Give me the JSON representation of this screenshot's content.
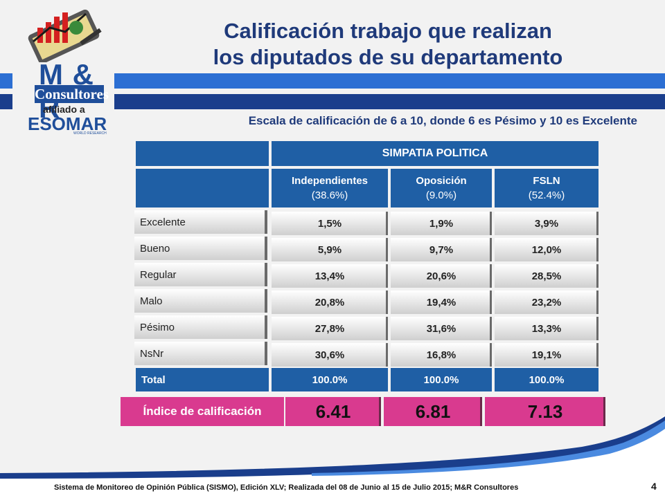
{
  "logo": {
    "brand": "M & R",
    "name": "Consultores",
    "affiliation": "afiliado a",
    "partner": "ESOMAR",
    "partner_sub": "WORLD RESEARCH"
  },
  "title_line1": "Calificación trabajo que realizan",
  "title_line2": "los diputados de su departamento",
  "subtitle": "Escala de calificación de 6 a 10, donde 6 es Pésimo y 10 es Excelente",
  "table": {
    "group_header": "SIMPATIA POLITICA",
    "columns": [
      {
        "name": "Independientes",
        "share": "(38.6%)"
      },
      {
        "name": "Oposición",
        "share": "(9.0%)"
      },
      {
        "name": "FSLN",
        "share": "(52.4%)"
      }
    ],
    "rows": [
      {
        "label": "Excelente",
        "values": [
          "1,5%",
          "1,9%",
          "3,9%"
        ]
      },
      {
        "label": "Bueno",
        "values": [
          "5,9%",
          "9,7%",
          "12,0%"
        ]
      },
      {
        "label": "Regular",
        "values": [
          "13,4%",
          "20,6%",
          "28,5%"
        ]
      },
      {
        "label": "Malo",
        "values": [
          "20,8%",
          "19,4%",
          "23,2%"
        ]
      },
      {
        "label": "Pésimo",
        "values": [
          "27,8%",
          "31,6%",
          "13,3%"
        ]
      },
      {
        "label": "NsNr",
        "values": [
          "30,6%",
          "16,8%",
          "19,1%"
        ]
      }
    ],
    "total": {
      "label": "Total",
      "values": [
        "100.0%",
        "100.0%",
        "100.0%"
      ]
    },
    "index": {
      "label": "Índice de calificación",
      "values": [
        "6.41",
        "6.81",
        "7.13"
      ]
    }
  },
  "footer": "Sistema de Monitoreo de Opinión Pública (SISMO), Edición XLV; Realizada del 08 de Junio al 15 de Julio 2015; M&R Consultores",
  "page_number": "4",
  "colors": {
    "header_blue": "#1f5fa5",
    "title_blue": "#1f3a7a",
    "index_pink": "#d93a8f"
  }
}
